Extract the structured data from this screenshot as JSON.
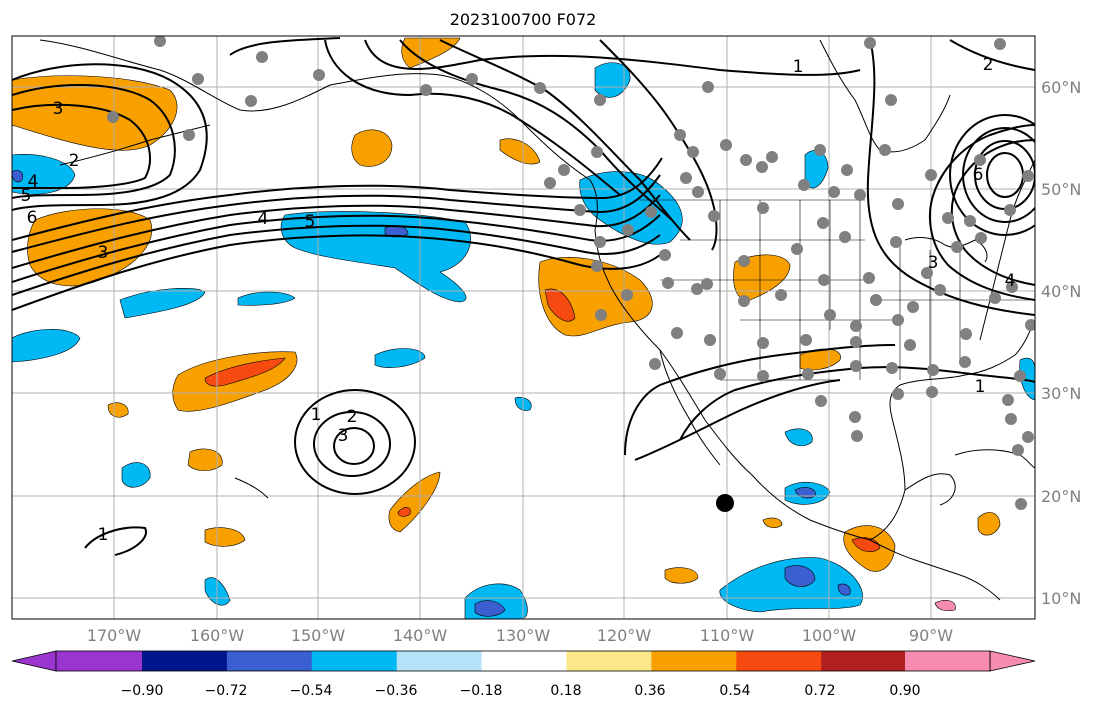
{
  "title": "2023100700 F072",
  "colors": {
    "pos_018_036": "#fbe88a",
    "pos_036_054": "#f7a000",
    "pos_054_072": "#f54a10",
    "pos_072_090": "#b02020",
    "pos_gt_090": "#f78cb0",
    "neg_018_036": "#b4e2f8",
    "neg_036_054": "#00b8f4",
    "neg_054_072": "#3a5fd0",
    "neg_072_090": "#00148c",
    "neg_lt_090": "#9a35d0",
    "grid": "#b0b0b0",
    "station": "#808080",
    "contour": "#000000"
  },
  "axes": {
    "lon_labels": [
      "170°W",
      "160°W",
      "150°W",
      "140°W",
      "130°W",
      "120°W",
      "110°W",
      "100°W",
      "90°W"
    ],
    "lat_labels": [
      "60°N",
      "50°N",
      "40°N",
      "30°N",
      "20°N",
      "10°N"
    ]
  },
  "colorbar": {
    "labels": [
      "−0.90",
      "−0.72",
      "−0.54",
      "−0.36",
      "−0.18",
      "0.18",
      "0.36",
      "0.54",
      "0.72",
      "0.90"
    ],
    "segment_colors": [
      "#00148c",
      "#3a5fd0",
      "#00b8f4",
      "#b4e2f8",
      "#ffffff",
      "#fbe88a",
      "#f7a000",
      "#f54a10",
      "#b02020"
    ]
  },
  "contour_labels": {
    "pacific_high_1": "1",
    "pacific_high_2": "2",
    "pacific_high_3": "3",
    "west_1": "1",
    "nw_2": "2",
    "nw_3": "3",
    "nw_4a": "4",
    "nw_5": "5",
    "nw_6": "6",
    "mid_4": "4",
    "mid_5": "5",
    "west_3": "3",
    "ak_1": "1",
    "ne_2": "2",
    "ne_6": "6",
    "ne_3": "3",
    "ne_4": "4",
    "gulf_1": "1"
  }
}
